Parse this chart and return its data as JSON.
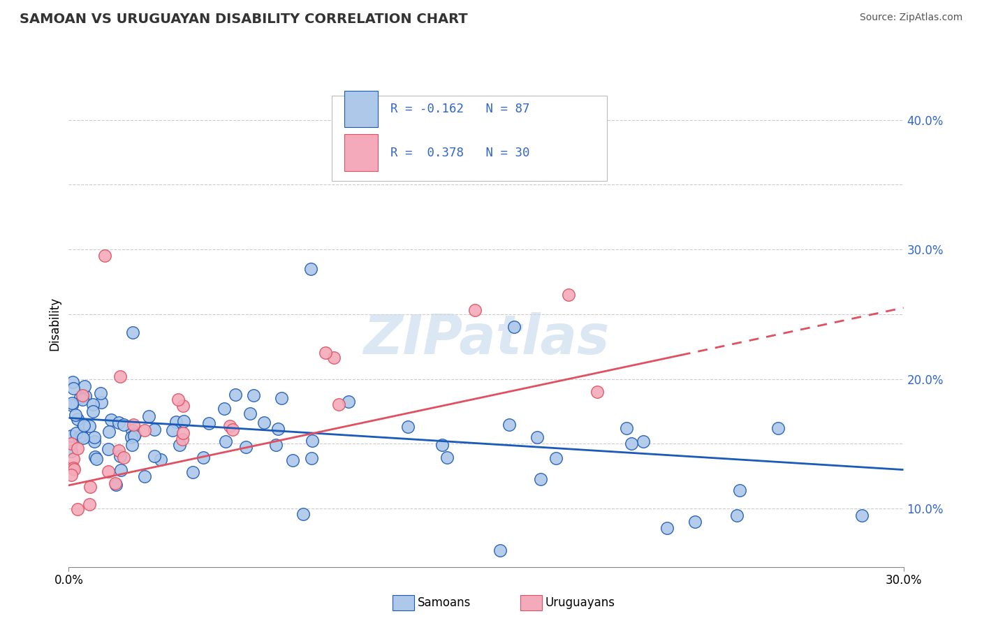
{
  "title": "SAMOAN VS URUGUAYAN DISABILITY CORRELATION CHART",
  "source": "Source: ZipAtlas.com",
  "ylabel": "Disability",
  "xlim": [
    0.0,
    0.3
  ],
  "ylim": [
    0.055,
    0.43
  ],
  "samoan_color": "#adc8e8",
  "uruguayan_color": "#f4aabb",
  "samoan_line_color": "#1a5ab8",
  "uruguayan_line_color": "#e05060",
  "watermark": "ZIPatlas",
  "grid_color": "#cccccc",
  "samoans_label": "Samoans",
  "uruguayans_label": "Uruguayans",
  "samoan_R": -0.162,
  "samoan_N": 87,
  "uruguayan_R": 0.378,
  "uruguayan_N": 30,
  "blue_line_start_y": 0.17,
  "blue_line_end_y": 0.13,
  "pink_line_start_y": 0.118,
  "pink_line_end_y": 0.255,
  "pink_line_solid_end_x": 0.22,
  "ytick_positions": [
    0.1,
    0.15,
    0.2,
    0.25,
    0.3,
    0.35,
    0.4
  ],
  "ytick_labels_right": [
    "10.0%",
    "",
    "20.0%",
    "",
    "30.0%",
    "",
    "40.0%"
  ],
  "legend_color": "#3366cc",
  "title_fontsize": 14,
  "axis_label_color": "#3366cc"
}
